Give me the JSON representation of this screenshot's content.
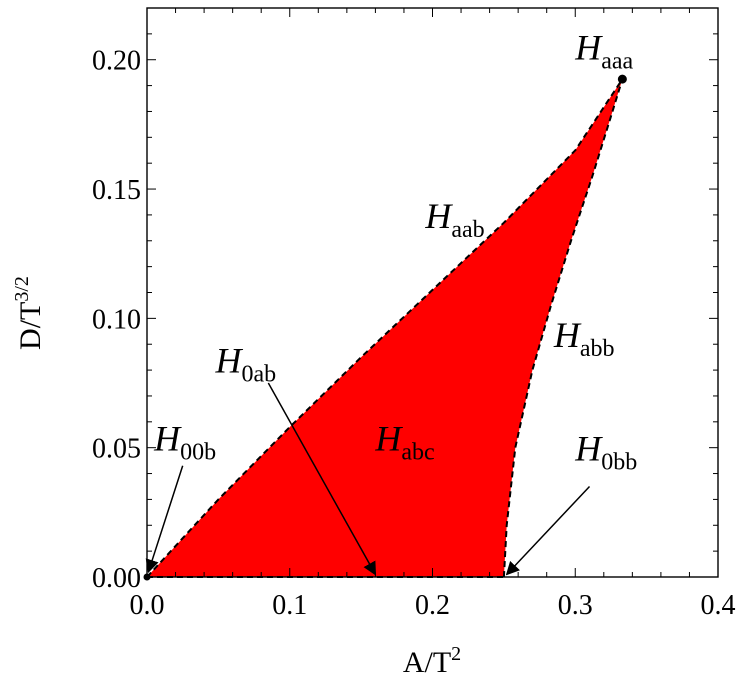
{
  "chart_data": {
    "type": "area",
    "xlabel": "A/T",
    "xlabel_sup": "2",
    "ylabel": "D/T",
    "ylabel_sup": "3/2",
    "xlim": [
      0.0,
      0.4
    ],
    "ylim": [
      0.0,
      0.22
    ],
    "x_ticks": [
      0.0,
      0.1,
      0.2,
      0.3,
      0.4
    ],
    "x_tick_labels": [
      "0.0",
      "0.1",
      "0.2",
      "0.3",
      "0.4"
    ],
    "y_ticks": [
      0.0,
      0.05,
      0.1,
      0.15,
      0.2
    ],
    "y_tick_labels": [
      "0.00",
      "0.05",
      "0.10",
      "0.15",
      "0.20"
    ],
    "grid": false,
    "colors": {
      "fill": "#ff0000",
      "boundary": "#000000"
    },
    "region": {
      "name": "H_abc",
      "upper_boundary": {
        "label": "H_aab",
        "x": [
          0.0,
          0.05,
          0.1,
          0.15,
          0.2,
          0.25,
          0.3,
          0.333
        ],
        "y": [
          0.0,
          0.03,
          0.058,
          0.085,
          0.111,
          0.137,
          0.165,
          0.1925
        ]
      },
      "right_boundary": {
        "label": "H_abb",
        "x": [
          0.25,
          0.252,
          0.258,
          0.27,
          0.283,
          0.297,
          0.312,
          0.325,
          0.333
        ],
        "y": [
          0.0,
          0.02,
          0.05,
          0.08,
          0.105,
          0.13,
          0.155,
          0.178,
          0.1925
        ]
      },
      "bottom_boundary": {
        "label": "H_0ab",
        "x": [
          0.0,
          0.25
        ],
        "y": [
          0.0,
          0.0
        ]
      }
    },
    "points": [
      {
        "label": "H_aaa",
        "x": 0.333,
        "y": 0.1925
      }
    ],
    "annotations": [
      {
        "id": "haaa",
        "base": "H",
        "sub": "aaa",
        "x": 0.3,
        "y": 0.2
      },
      {
        "id": "haab",
        "base": "H",
        "sub": "aab",
        "x": 0.195,
        "y": 0.135
      },
      {
        "id": "habb",
        "base": "H",
        "sub": "abb",
        "x": 0.285,
        "y": 0.089
      },
      {
        "id": "h0ab",
        "base": "H",
        "sub": "0ab",
        "x": 0.048,
        "y": 0.079
      },
      {
        "id": "habc",
        "base": "H",
        "sub": "abc",
        "x": 0.16,
        "y": 0.049
      },
      {
        "id": "h00b",
        "base": "H",
        "sub": "00b",
        "x": 0.005,
        "y": 0.049
      },
      {
        "id": "h0bb",
        "base": "H",
        "sub": "0bb",
        "x": 0.3,
        "y": 0.045
      }
    ],
    "arrows": [
      {
        "id": "arrow-h0ab",
        "from": [
          0.085,
          0.075
        ],
        "to": [
          0.16,
          0.001
        ]
      },
      {
        "id": "arrow-h00b",
        "from": [
          0.025,
          0.043
        ],
        "to": [
          0.001,
          0.002
        ]
      },
      {
        "id": "arrow-h0bb",
        "from": [
          0.31,
          0.035
        ],
        "to": [
          0.252,
          0.001
        ]
      }
    ]
  }
}
